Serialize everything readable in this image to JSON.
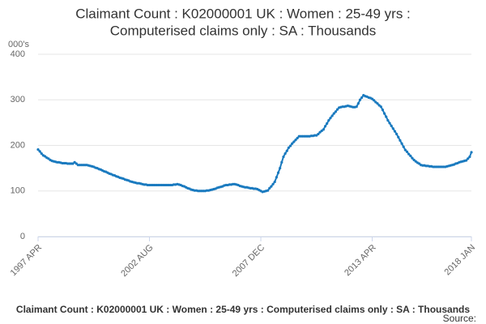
{
  "chart_data": {
    "type": "line",
    "title": [
      "Claimant Count : K02000001 UK : Women : 25-49 yrs :",
      "Computerised claims only : SA : Thousands"
    ],
    "y_unit_label": "000's",
    "caption": "Claimant Count : K02000001 UK : Women : 25-49 yrs : Computerised claims only : SA : Thousands",
    "source": "Source:",
    "color": "#1a7abf",
    "grid": true,
    "ylim": [
      0,
      400
    ],
    "yticks": [
      0,
      100,
      200,
      300,
      400
    ],
    "categories": [
      "1997 APR",
      null,
      null,
      null,
      null,
      null,
      null,
      null,
      null,
      null,
      null,
      null,
      null,
      null,
      null,
      null,
      null,
      null,
      null,
      null,
      null,
      null,
      null,
      null,
      null,
      null,
      null,
      null,
      null,
      null,
      null,
      null,
      null,
      null,
      null,
      null,
      null,
      null,
      null,
      null,
      null,
      null,
      null,
      null,
      null,
      null,
      null,
      null,
      null,
      null,
      null,
      null,
      null,
      null,
      null,
      null,
      null,
      null,
      null,
      null,
      null,
      null,
      null,
      null,
      "2002 AUG",
      null,
      null,
      null,
      null,
      null,
      null,
      null,
      null,
      null,
      null,
      null,
      null,
      null,
      null,
      null,
      null,
      null,
      null,
      null,
      null,
      null,
      null,
      null,
      null,
      null,
      null,
      null,
      null,
      null,
      null,
      null,
      null,
      null,
      null,
      null,
      null,
      null,
      null,
      null,
      null,
      null,
      null,
      null,
      null,
      null,
      null,
      null,
      null,
      null,
      null,
      null,
      null,
      null,
      null,
      null,
      null,
      null,
      null,
      null,
      null,
      null,
      null,
      null,
      "2007 DEC",
      null,
      null,
      null,
      null,
      null,
      null,
      null,
      null,
      null,
      null,
      null,
      null,
      null,
      null,
      null,
      null,
      null,
      null,
      null,
      null,
      null,
      null,
      null,
      null,
      null,
      null,
      null,
      null,
      null,
      null,
      null,
      null,
      null,
      null,
      null,
      null,
      null,
      null,
      null,
      null,
      null,
      null,
      null,
      null,
      null,
      null,
      null,
      null,
      null,
      null,
      null,
      null,
      null,
      null,
      null,
      null,
      null,
      null,
      null,
      null,
      null,
      null,
      null,
      "2013 APR",
      null,
      null,
      null,
      null,
      null,
      null,
      null,
      null,
      null,
      null,
      null,
      null,
      null,
      null,
      null,
      null,
      null,
      null,
      null,
      null,
      null,
      null,
      null,
      null,
      null,
      null,
      null,
      null,
      null,
      null,
      null,
      null,
      null,
      null,
      null,
      null,
      null,
      null,
      null,
      null,
      null,
      null,
      null,
      null,
      null,
      null,
      null,
      null,
      null,
      null,
      null,
      null,
      null,
      null,
      null,
      null,
      "2018 JAN"
    ],
    "values": [
      191,
      187,
      182,
      178,
      176,
      173,
      171,
      168,
      166,
      165,
      164,
      163,
      163,
      162,
      161,
      161,
      161,
      160,
      160,
      160,
      160,
      163,
      160,
      157,
      157,
      157,
      157,
      157,
      157,
      156,
      155,
      154,
      153,
      151,
      150,
      148,
      147,
      145,
      143,
      142,
      140,
      138,
      137,
      135,
      134,
      132,
      131,
      129,
      128,
      127,
      125,
      124,
      123,
      121,
      120,
      119,
      118,
      117,
      117,
      116,
      115,
      114,
      114,
      113,
      113,
      113,
      113,
      113,
      113,
      113,
      113,
      113,
      113,
      113,
      113,
      113,
      113,
      113,
      114,
      114,
      115,
      114,
      113,
      111,
      110,
      108,
      106,
      105,
      103,
      102,
      101,
      101,
      100,
      100,
      100,
      100,
      100,
      101,
      101,
      102,
      103,
      104,
      105,
      107,
      108,
      109,
      110,
      112,
      113,
      113,
      114,
      114,
      115,
      115,
      114,
      113,
      111,
      110,
      109,
      108,
      108,
      107,
      106,
      106,
      105,
      105,
      104,
      102,
      100,
      98,
      99,
      100,
      101,
      106,
      110,
      115,
      120,
      130,
      140,
      150,
      163,
      175,
      182,
      188,
      195,
      199,
      204,
      208,
      212,
      216,
      220,
      220,
      220,
      220,
      220,
      220,
      220,
      221,
      221,
      222,
      222,
      225,
      229,
      232,
      235,
      242,
      248,
      255,
      260,
      265,
      270,
      274,
      279,
      283,
      284,
      285,
      285,
      286,
      287,
      286,
      285,
      284,
      284,
      285,
      292,
      300,
      305,
      310,
      308,
      307,
      305,
      304,
      302,
      299,
      295,
      292,
      288,
      285,
      278,
      270,
      263,
      255,
      249,
      243,
      237,
      231,
      225,
      218,
      211,
      204,
      197,
      190,
      186,
      181,
      177,
      172,
      168,
      165,
      162,
      160,
      157,
      156,
      156,
      155,
      155,
      154,
      154,
      153,
      153,
      153,
      153,
      153,
      153,
      153,
      153,
      154,
      155,
      156,
      157,
      158,
      160,
      161,
      163,
      164,
      165,
      166,
      167,
      171,
      175,
      185
    ]
  }
}
